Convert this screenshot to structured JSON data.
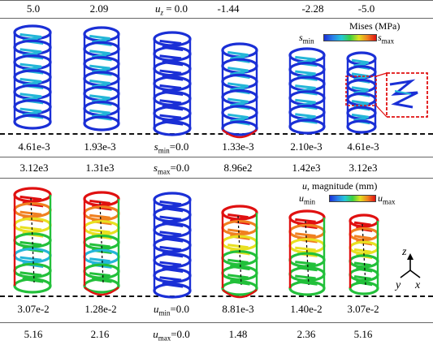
{
  "header_uz": [
    "5.0",
    "2.09",
    "-1.44",
    "-2.28",
    "-5.0"
  ],
  "uz_center": {
    "symbol": "u",
    "sub": "z",
    "text": " = 0.0"
  },
  "mises": {
    "title": "Mises (MPa)",
    "min": "s",
    "min_sub": "min",
    "max": "s",
    "max_sub": "max",
    "row_min": [
      "4.61e-3",
      "1.93e-3",
      "1.33e-3",
      "2.10e-3",
      "4.61e-3"
    ],
    "row_max": [
      "3.12e3",
      "1.31e3",
      "8.96e2",
      "1.42e3",
      "3.12e3"
    ],
    "center_min": "=0.0",
    "center_max": "=0.0"
  },
  "disp": {
    "title_sym": "u",
    "title": ", magnitude (mm)",
    "min": "u",
    "min_sub": "min",
    "max": "u",
    "max_sub": "max",
    "row_min": [
      "3.07e-2",
      "1.28e-2",
      "8.81e-3",
      "1.40e-2",
      "3.07e-2"
    ],
    "row_max": [
      "5.16",
      "2.16",
      "1.48",
      "2.36",
      "5.16"
    ],
    "center_min": "=0.0",
    "center_max": "=0.0"
  },
  "axes": {
    "z": "z",
    "y": "y",
    "x": "x"
  },
  "colors": {
    "blue": "#1a2fd6",
    "red": "#e01010",
    "green": "#22c03a",
    "yellow": "#e8e020",
    "cyan": "#24b6d8",
    "orange": "#f08020"
  }
}
